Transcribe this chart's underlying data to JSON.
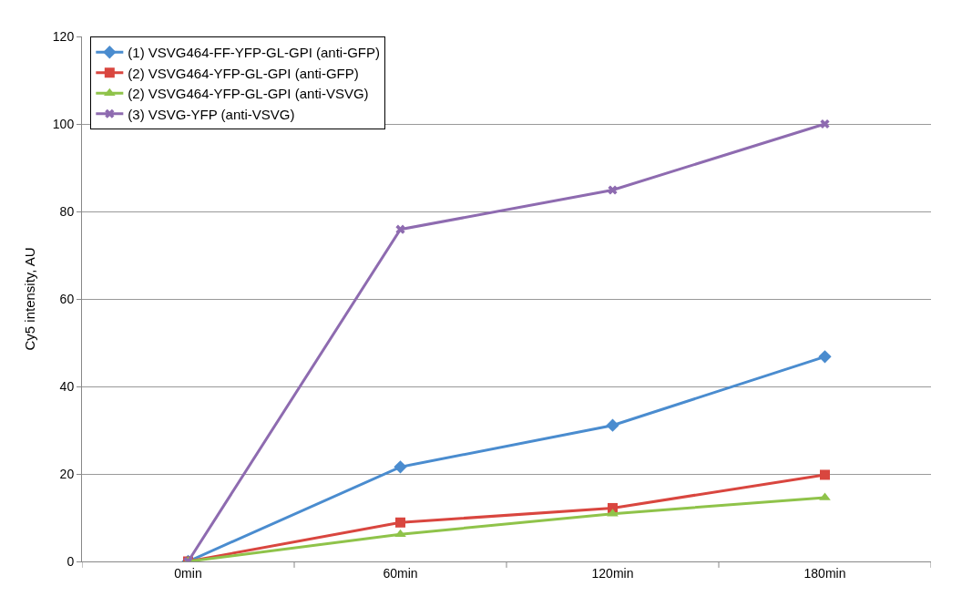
{
  "chart_data": {
    "type": "line",
    "ylabel": "Cy5 intensity, AU",
    "categories": [
      "0min",
      "60min",
      "120min",
      "180min"
    ],
    "ylim": [
      0,
      120
    ],
    "yticks": [
      0,
      20,
      40,
      60,
      80,
      100,
      120
    ],
    "grid": "y",
    "legend": "top left",
    "series": [
      {
        "name": "(1) VSVG464-FF-YFP-GL-GPI (anti-GFP)",
        "color": "#4a8ccf",
        "marker": "diamond",
        "values": [
          0,
          21.6,
          31.1,
          46.8
        ]
      },
      {
        "name": "(2) VSVG464-YFP-GL-GPI (anti-GFP)",
        "color": "#d9463f",
        "marker": "square",
        "values": [
          0,
          8.9,
          12.2,
          19.8
        ]
      },
      {
        "name": "(2) VSVG464-YFP-GL-GPI (anti-VSVG)",
        "color": "#8fc34a",
        "marker": "triangle",
        "values": [
          0,
          6.2,
          10.9,
          14.6
        ]
      },
      {
        "name": "(3) VSVG-YFP (anti-VSVG)",
        "color": "#8e6bb0",
        "marker": "cross",
        "values": [
          0,
          75.9,
          84.9,
          100
        ]
      }
    ]
  }
}
